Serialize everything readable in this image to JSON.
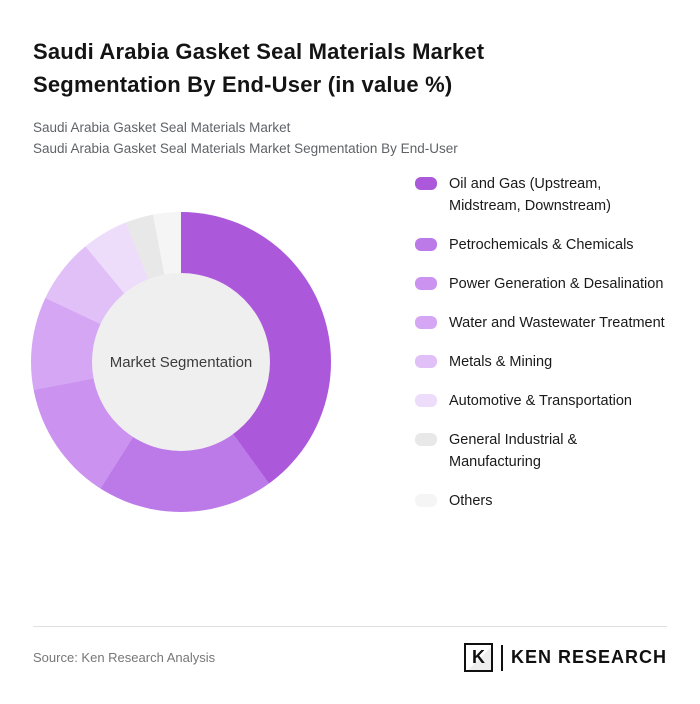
{
  "header": {
    "title": "Saudi Arabia Gasket Seal Materials Market Segmentation By End-User (in value %)",
    "subtitle1": "Saudi Arabia Gasket Seal Materials Market",
    "subtitle2": "Saudi Arabia Gasket Seal Materials Market Segmentation By End-User"
  },
  "chart_data": {
    "type": "pie",
    "variant": "donut",
    "title": "Saudi Arabia Gasket Seal Materials Market Segmentation By End-User (in value %)",
    "center_label": "Market Segmentation",
    "legend_position": "right",
    "value_unit": "%",
    "segments": [
      {
        "label": "Oil and Gas (Upstream, Midstream, Downstream)",
        "value": 40,
        "color": "#ab58da"
      },
      {
        "label": "Petrochemicals & Chemicals",
        "value": 19,
        "color": "#bc7ae8"
      },
      {
        "label": "Power Generation & Desalination",
        "value": 13,
        "color": "#cb93ef"
      },
      {
        "label": "Water and Wastewater Treatment",
        "value": 10,
        "color": "#d5a6f3"
      },
      {
        "label": "Metals & Mining",
        "value": 7,
        "color": "#e1bff7"
      },
      {
        "label": "Automotive & Transportation",
        "value": 5,
        "color": "#eedcfb"
      },
      {
        "label": "General Industrial & Manufacturing",
        "value": 3,
        "color": "#e8e8e8"
      },
      {
        "label": "Others",
        "value": 3,
        "color": "#f5f5f5"
      }
    ],
    "hole_color": "#efefef"
  },
  "footer": {
    "source": "Source: Ken Research Analysis",
    "logo_letter": "K",
    "logo_text": "KEN RESEARCH"
  }
}
